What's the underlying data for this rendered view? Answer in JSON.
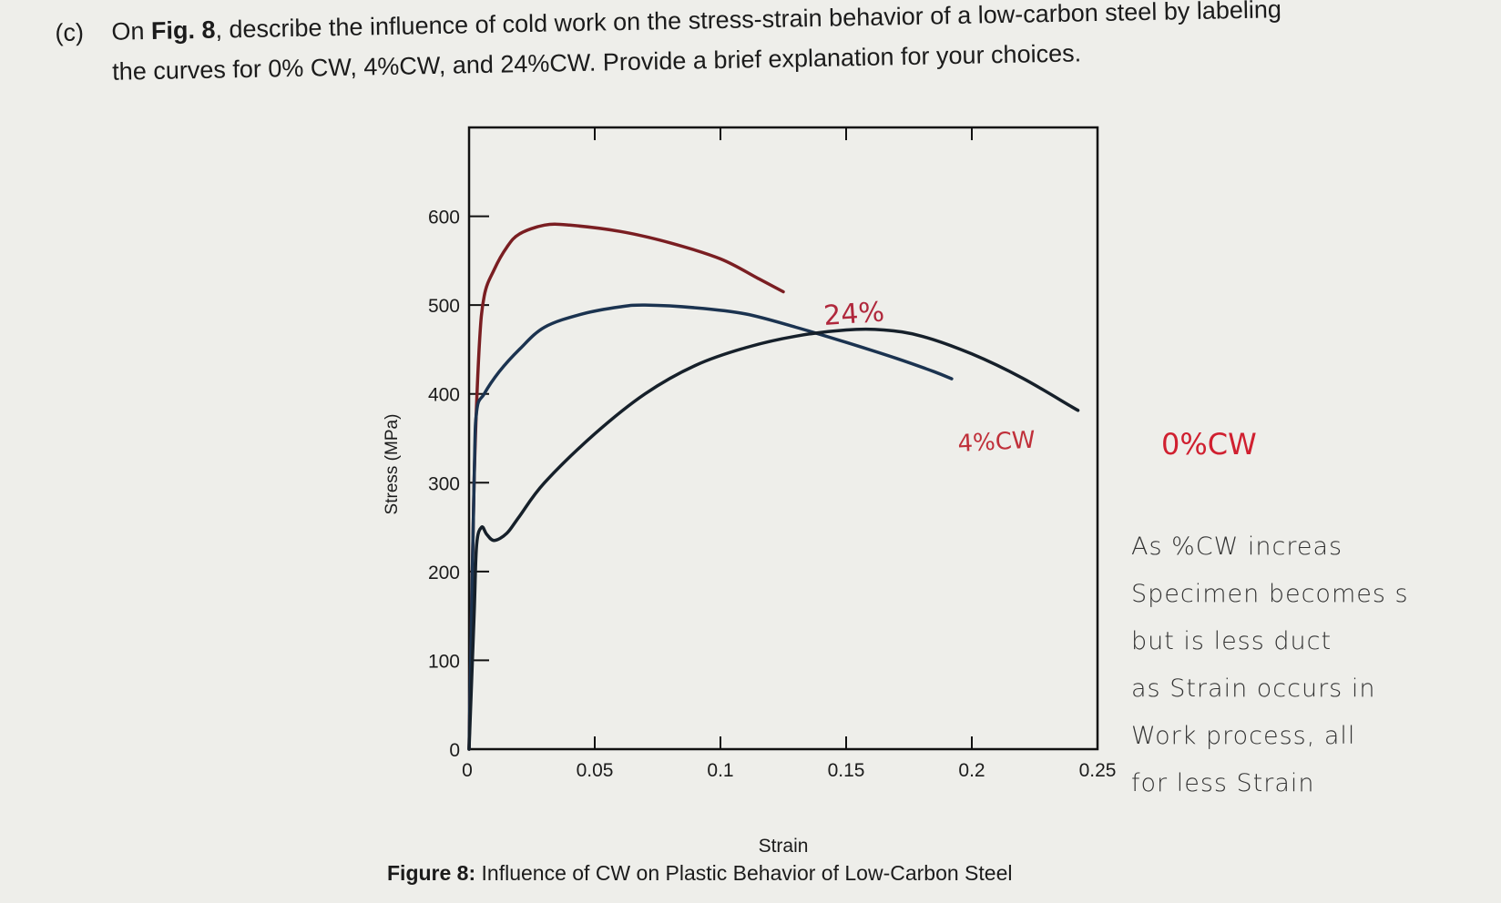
{
  "question": {
    "label": "(c)",
    "line1_pre": "On ",
    "line1_bold": "Fig. 8",
    "line1_post": ", describe the influence of cold work on the stress-strain behavior of a low-carbon steel by labeling",
    "line2": "the curves for 0% CW, 4%CW, and 24%CW.  Provide a brief explanation for your choices."
  },
  "figure": {
    "caption_bold": "Figure 8:",
    "caption_text": " Influence of CW on Plastic Behavior of Low-Carbon Steel"
  },
  "handwritten": {
    "label_top": "24%",
    "label_mid": "4%CW",
    "label_bottom": "0%CW",
    "note_lines": [
      "As %CW increas",
      "Specimen becomes s",
      "but is less duct",
      "as Strain occurs in",
      "Work process, all",
      "for less Strain"
    ],
    "label_colors": {
      "top": "#b0283c",
      "mid": "#c0303a",
      "bottom": "#d02030"
    }
  },
  "chart_data": {
    "type": "line",
    "title": "",
    "xlabel": "Strain",
    "ylabel": "Stress (MPa)",
    "xlim": [
      0,
      0.25
    ],
    "ylim": [
      0,
      700
    ],
    "x_ticks": [
      0,
      0.05,
      0.1,
      0.15,
      0.2,
      0.25
    ],
    "x_tick_labels": [
      "0",
      "0.05",
      "0.1",
      "0.15",
      "0.2",
      "0.25"
    ],
    "y_ticks": [
      0,
      100,
      200,
      300,
      400,
      500,
      600
    ],
    "y_tick_labels": [
      "0",
      "100",
      "200",
      "300",
      "400",
      "500",
      "600"
    ],
    "grid": false,
    "series": [
      {
        "color": "#7a1e22",
        "points": [
          [
            0,
            0
          ],
          [
            0.002,
            300
          ],
          [
            0.004,
            450
          ],
          [
            0.006,
            510
          ],
          [
            0.01,
            540
          ],
          [
            0.015,
            565
          ],
          [
            0.02,
            580
          ],
          [
            0.03,
            590
          ],
          [
            0.04,
            590
          ],
          [
            0.06,
            583
          ],
          [
            0.08,
            570
          ],
          [
            0.1,
            552
          ],
          [
            0.115,
            530
          ],
          [
            0.125,
            515
          ]
        ]
      },
      {
        "color": "#1b3350",
        "points": [
          [
            0,
            0
          ],
          [
            0.002,
            300
          ],
          [
            0.003,
            380
          ],
          [
            0.006,
            400
          ],
          [
            0.012,
            425
          ],
          [
            0.02,
            450
          ],
          [
            0.03,
            475
          ],
          [
            0.045,
            490
          ],
          [
            0.06,
            498
          ],
          [
            0.07,
            500
          ],
          [
            0.09,
            497
          ],
          [
            0.11,
            490
          ],
          [
            0.13,
            475
          ],
          [
            0.15,
            458
          ],
          [
            0.17,
            440
          ],
          [
            0.185,
            425
          ],
          [
            0.192,
            417
          ]
        ]
      },
      {
        "color": "#16202a",
        "points": [
          [
            0,
            0
          ],
          [
            0.002,
            150
          ],
          [
            0.003,
            230
          ],
          [
            0.005,
            250
          ],
          [
            0.007,
            242
          ],
          [
            0.01,
            235
          ],
          [
            0.015,
            243
          ],
          [
            0.02,
            262
          ],
          [
            0.03,
            300
          ],
          [
            0.05,
            355
          ],
          [
            0.07,
            400
          ],
          [
            0.09,
            432
          ],
          [
            0.11,
            452
          ],
          [
            0.13,
            465
          ],
          [
            0.15,
            472
          ],
          [
            0.165,
            472
          ],
          [
            0.18,
            465
          ],
          [
            0.2,
            445
          ],
          [
            0.22,
            418
          ],
          [
            0.24,
            385
          ],
          [
            0.242,
            382
          ]
        ]
      }
    ]
  }
}
